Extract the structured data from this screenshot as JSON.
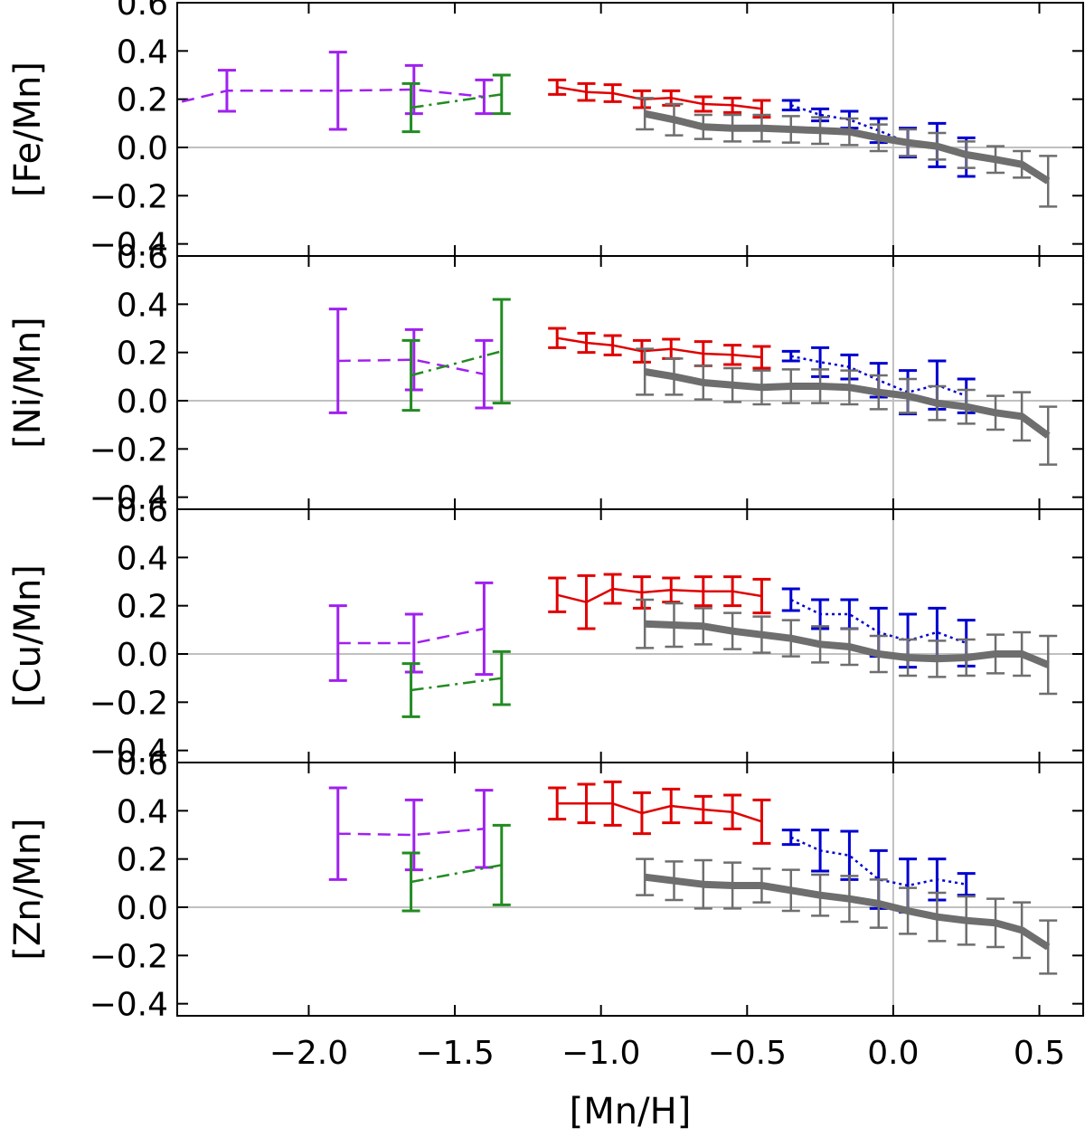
{
  "chart_data": {
    "type": "line",
    "xlabel": "[Mn/H]",
    "xlim": [
      -2.45,
      0.65
    ],
    "x_ticks": [
      -2.0,
      -1.5,
      -1.0,
      -0.5,
      0.0,
      0.5
    ],
    "x_tick_labels": [
      "−2.0",
      "−1.5",
      "−1.0",
      "−0.5",
      "0.0",
      "0.5"
    ],
    "ylim": [
      -0.45,
      0.6
    ],
    "y_ticks": [
      -0.4,
      -0.2,
      0.0,
      0.2,
      0.4,
      0.6
    ],
    "y_tick_labels": [
      "−0.4",
      "−0.2",
      "0.0",
      "0.2",
      "0.4",
      "0.6"
    ],
    "reference_lines": {
      "x": 0.0,
      "y": 0.0
    },
    "series_styles": {
      "purple": {
        "color": "#a020f0",
        "dash": "14,8",
        "width": 2.5
      },
      "green": {
        "color": "#228b22",
        "dash": "14,6,3,6",
        "width": 2.5
      },
      "red": {
        "color": "#e00000",
        "dash": "",
        "width": 2.5
      },
      "blue": {
        "color": "#0000d0",
        "dash": "3,4",
        "width": 2.5
      },
      "gray": {
        "color": "#6e6e6e",
        "dash": "",
        "width": 8
      }
    },
    "panels": [
      {
        "ylabel": "[Fe/Mn]",
        "series": [
          {
            "name": "purple",
            "x": [
              -2.5,
              -2.28,
              -1.9,
              -1.64,
              -1.4
            ],
            "y": [
              0.17,
              0.235,
              0.235,
              0.24,
              0.21
            ],
            "err": [
              0,
              0.085,
              0.16,
              0.1,
              0.07
            ]
          },
          {
            "name": "green",
            "x": [
              -1.65,
              -1.34
            ],
            "y": [
              0.165,
              0.22
            ],
            "err": [
              0.1,
              0.08
            ]
          },
          {
            "name": "red",
            "x": [
              -1.15,
              -1.05,
              -0.96,
              -0.86,
              -0.76,
              -0.65,
              -0.55,
              -0.45
            ],
            "y": [
              0.25,
              0.23,
              0.225,
              0.2,
              0.205,
              0.18,
              0.175,
              0.16
            ],
            "err": [
              0.03,
              0.035,
              0.035,
              0.035,
              0.03,
              0.03,
              0.03,
              0.035
            ]
          },
          {
            "name": "blue",
            "x": [
              -0.35,
              -0.25,
              -0.15,
              -0.05,
              0.05,
              0.15,
              0.25
            ],
            "y": [
              0.175,
              0.135,
              0.115,
              0.07,
              0.02,
              0.01,
              -0.04
            ],
            "err": [
              0.02,
              0.025,
              0.035,
              0.05,
              0.06,
              0.09,
              0.08
            ]
          },
          {
            "name": "gray",
            "x": [
              -0.85,
              -0.75,
              -0.65,
              -0.55,
              -0.45,
              -0.35,
              -0.25,
              -0.15,
              -0.05,
              0.05,
              0.15,
              0.25,
              0.35,
              0.44,
              0.53
            ],
            "y": [
              0.14,
              0.115,
              0.085,
              0.08,
              0.08,
              0.075,
              0.07,
              0.065,
              0.04,
              0.02,
              0.005,
              -0.03,
              -0.05,
              -0.07,
              -0.14
            ],
            "err": [
              0.065,
              0.065,
              0.05,
              0.055,
              0.055,
              0.055,
              0.055,
              0.055,
              0.055,
              0.055,
              0.055,
              0.055,
              0.055,
              0.055,
              0.105
            ]
          }
        ]
      },
      {
        "ylabel": "[Ni/Mn]",
        "series": [
          {
            "name": "purple",
            "x": [
              -1.9,
              -1.64,
              -1.4
            ],
            "y": [
              0.165,
              0.17,
              0.11
            ],
            "err": [
              0.215,
              0.125,
              0.14
            ]
          },
          {
            "name": "green",
            "x": [
              -1.65,
              -1.34
            ],
            "y": [
              0.105,
              0.205
            ],
            "err": [
              0.145,
              0.215
            ]
          },
          {
            "name": "red",
            "x": [
              -1.15,
              -1.05,
              -0.96,
              -0.86,
              -0.76,
              -0.65,
              -0.55,
              -0.45
            ],
            "y": [
              0.26,
              0.24,
              0.23,
              0.205,
              0.215,
              0.195,
              0.19,
              0.18
            ],
            "err": [
              0.04,
              0.04,
              0.04,
              0.045,
              0.04,
              0.05,
              0.04,
              0.045
            ]
          },
          {
            "name": "blue",
            "x": [
              -0.35,
              -0.25,
              -0.15,
              -0.05,
              0.05,
              0.15,
              0.25
            ],
            "y": [
              0.185,
              0.16,
              0.14,
              0.085,
              0.035,
              0.065,
              0.02
            ],
            "err": [
              0.02,
              0.06,
              0.05,
              0.07,
              0.09,
              0.1,
              0.07
            ]
          },
          {
            "name": "gray",
            "x": [
              -0.85,
              -0.75,
              -0.65,
              -0.55,
              -0.45,
              -0.35,
              -0.25,
              -0.15,
              -0.05,
              0.05,
              0.15,
              0.25,
              0.35,
              0.44,
              0.53
            ],
            "y": [
              0.12,
              0.1,
              0.075,
              0.065,
              0.055,
              0.06,
              0.06,
              0.055,
              0.035,
              0.02,
              -0.01,
              -0.025,
              -0.05,
              -0.065,
              -0.145
            ],
            "err": [
              0.095,
              0.075,
              0.07,
              0.07,
              0.07,
              0.07,
              0.07,
              0.07,
              0.07,
              0.07,
              0.07,
              0.07,
              0.07,
              0.1,
              0.12
            ]
          }
        ]
      },
      {
        "ylabel": "[Cu/Mn]",
        "series": [
          {
            "name": "purple",
            "x": [
              -1.9,
              -1.64,
              -1.4
            ],
            "y": [
              0.045,
              0.045,
              0.105
            ],
            "err": [
              0.155,
              0.12,
              0.19
            ]
          },
          {
            "name": "green",
            "x": [
              -1.65,
              -1.34
            ],
            "y": [
              -0.15,
              -0.1
            ],
            "err": [
              0.11,
              0.11
            ]
          },
          {
            "name": "red",
            "x": [
              -1.15,
              -1.05,
              -0.96,
              -0.86,
              -0.76,
              -0.65,
              -0.55,
              -0.45
            ],
            "y": [
              0.245,
              0.215,
              0.27,
              0.255,
              0.265,
              0.26,
              0.26,
              0.24
            ],
            "err": [
              0.07,
              0.11,
              0.06,
              0.065,
              0.05,
              0.06,
              0.06,
              0.07
            ]
          },
          {
            "name": "blue",
            "x": [
              -0.35,
              -0.25,
              -0.15,
              -0.05,
              0.05,
              0.15,
              0.25
            ],
            "y": [
              0.225,
              0.165,
              0.165,
              0.09,
              0.055,
              0.09,
              0.045
            ],
            "err": [
              0.045,
              0.06,
              0.06,
              0.1,
              0.11,
              0.1,
              0.095
            ]
          },
          {
            "name": "gray",
            "x": [
              -0.85,
              -0.75,
              -0.65,
              -0.55,
              -0.45,
              -0.35,
              -0.25,
              -0.15,
              -0.05,
              0.05,
              0.15,
              0.25,
              0.35,
              0.44,
              0.53
            ],
            "y": [
              0.125,
              0.12,
              0.115,
              0.095,
              0.08,
              0.065,
              0.04,
              0.03,
              0.0,
              -0.015,
              -0.02,
              -0.015,
              0.0,
              0.0,
              -0.045
            ],
            "err": [
              0.1,
              0.09,
              0.075,
              0.075,
              0.075,
              0.075,
              0.075,
              0.075,
              0.075,
              0.075,
              0.075,
              0.075,
              0.08,
              0.09,
              0.12
            ]
          }
        ]
      },
      {
        "ylabel": "[Zn/Mn]",
        "series": [
          {
            "name": "purple",
            "x": [
              -1.9,
              -1.64,
              -1.4
            ],
            "y": [
              0.305,
              0.3,
              0.325
            ],
            "err": [
              0.19,
              0.145,
              0.16
            ]
          },
          {
            "name": "green",
            "x": [
              -1.65,
              -1.34
            ],
            "y": [
              0.105,
              0.175
            ],
            "err": [
              0.12,
              0.165
            ]
          },
          {
            "name": "red",
            "x": [
              -1.15,
              -1.05,
              -0.96,
              -0.86,
              -0.76,
              -0.65,
              -0.55,
              -0.45
            ],
            "y": [
              0.43,
              0.43,
              0.43,
              0.39,
              0.42,
              0.405,
              0.395,
              0.355
            ],
            "err": [
              0.065,
              0.08,
              0.09,
              0.085,
              0.07,
              0.055,
              0.07,
              0.09
            ]
          },
          {
            "name": "blue",
            "x": [
              -0.35,
              -0.25,
              -0.15,
              -0.05,
              0.05,
              0.15,
              0.25
            ],
            "y": [
              0.29,
              0.235,
              0.215,
              0.115,
              0.09,
              0.115,
              0.095
            ],
            "err": [
              0.03,
              0.085,
              0.1,
              0.12,
              0.11,
              0.085,
              0.045
            ]
          },
          {
            "name": "gray",
            "x": [
              -0.85,
              -0.75,
              -0.65,
              -0.55,
              -0.45,
              -0.35,
              -0.25,
              -0.15,
              -0.05,
              0.05,
              0.15,
              0.25,
              0.35,
              0.44,
              0.53
            ],
            "y": [
              0.125,
              0.11,
              0.095,
              0.09,
              0.09,
              0.07,
              0.05,
              0.035,
              0.015,
              -0.015,
              -0.04,
              -0.055,
              -0.065,
              -0.095,
              -0.165
            ],
            "err": [
              0.075,
              0.08,
              0.1,
              0.095,
              0.07,
              0.085,
              0.085,
              0.095,
              0.1,
              0.095,
              0.1,
              0.1,
              0.1,
              0.115,
              0.11
            ]
          }
        ]
      }
    ]
  }
}
